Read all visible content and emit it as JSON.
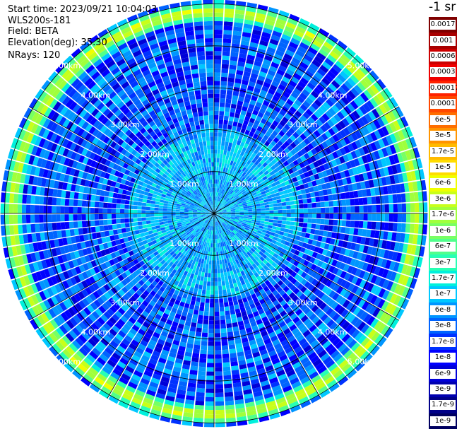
{
  "header": {
    "start_time": "Start time: 2023/09/21 10:04:03",
    "instrument": "WLS200s-181",
    "field": "Field: BETA",
    "elevation": "Elevation(deg): 35.30",
    "nrays": "NRays: 120"
  },
  "colorbar": {
    "unit_label": "-1 sr",
    "labels": [
      "0.0017",
      "0.001",
      "0.0006",
      "0.0003",
      "0.00017",
      "0.0001",
      "6e-5",
      "3e-5",
      "1.7e-5",
      "1e-5",
      "6e-6",
      "3e-6",
      "1.7e-6",
      "1e-6",
      "6e-7",
      "3e-7",
      "1.7e-7",
      "1e-7",
      "6e-8",
      "3e-8",
      "1.7e-8",
      "1e-8",
      "6e-9",
      "3e-9",
      "1.7e-9",
      "1e-9"
    ],
    "colors": [
      "#7f0000",
      "#a80000",
      "#cc0000",
      "#ee0000",
      "#ff2200",
      "#ff4800",
      "#ff6e00",
      "#ff9400",
      "#ffba00",
      "#ffdc00",
      "#f0ff00",
      "#c8ff1a",
      "#a0ff3c",
      "#78ff64",
      "#50ff8c",
      "#28ffb4",
      "#00f0dc",
      "#00c8ff",
      "#0096ff",
      "#0064ff",
      "#0032ff",
      "#0000ff",
      "#0000d8",
      "#0000b0",
      "#000088",
      "#000060"
    ]
  },
  "chart_data": {
    "type": "ppi",
    "field": "BETA",
    "nrays": 120,
    "elevation_deg": 35.3,
    "range_rings_km": [
      1.0,
      2.0,
      3.0,
      4.0,
      5.0
    ],
    "ring_labels": [
      "1.00km",
      "2.00km",
      "3.00km",
      "4.00km",
      "5.00km"
    ],
    "max_range_km": 5.1,
    "high_backscatter_band_km": [
      4.6,
      5.0
    ],
    "color_scale": "log",
    "vmin": 1e-09,
    "vmax": 0.0017
  }
}
